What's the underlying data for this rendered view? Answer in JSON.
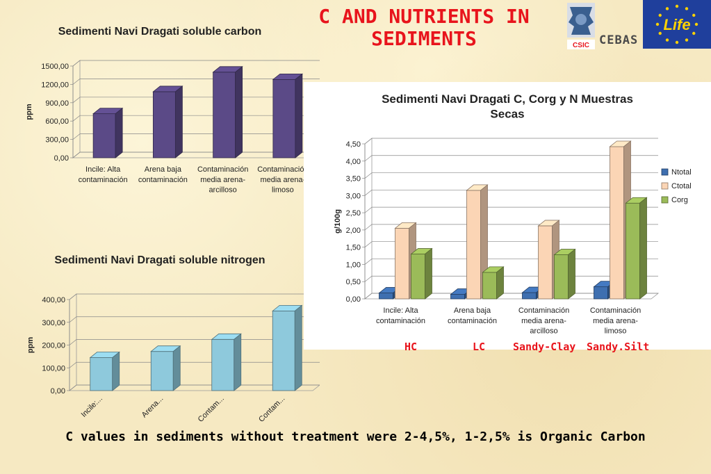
{
  "slide_title": "C AND NUTRIENTS IN SEDIMENTS",
  "logos": {
    "csic": "CSIC",
    "cebas": "CEBAS",
    "life": "Life"
  },
  "soil_labels": [
    "HC",
    "LC",
    "Sandy-Clay",
    "Sandy.Silt"
  ],
  "footer": "C values in sediments without treatment were 2-4,5%, 1-2,5% is Organic Carbon",
  "chart_data": [
    {
      "type": "bar",
      "title": "Sedimenti Navi Dragati soluble carbon",
      "ylabel": "ppm",
      "xlabel": "",
      "categories": [
        [
          "Incile: Alta",
          "contaminación"
        ],
        [
          "Arena baja",
          "contaminación"
        ],
        [
          "Contaminación",
          "media arena-",
          "arcilloso"
        ],
        [
          "Contaminación",
          "media arena-",
          "limoso"
        ]
      ],
      "values": [
        720,
        1080,
        1400,
        1280
      ],
      "ylim": [
        0,
        1500
      ],
      "yticks": [
        "0,00",
        "300,00",
        "600,00",
        "900,00",
        "1200,00",
        "1500,00"
      ],
      "color": "#5b4a87",
      "grid": true
    },
    {
      "type": "bar",
      "title": "Sedimenti Navi Dragati soluble nitrogen",
      "ylabel": "ppm",
      "xlabel": "",
      "categories": [
        [
          "Incile:..."
        ],
        [
          "Arena..."
        ],
        [
          "Contam..."
        ],
        [
          "Contam..."
        ]
      ],
      "values": [
        145,
        172,
        225,
        350
      ],
      "ylim": [
        0,
        400
      ],
      "yticks": [
        "0,00",
        "100,00",
        "200,00",
        "300,00",
        "400,00"
      ],
      "color": "#8ec9dc",
      "grid": true
    },
    {
      "type": "bar",
      "title": "Sedimenti Navi Dragati C, Corg y N Muestras Secas",
      "ylabel": "g/100g",
      "xlabel": "",
      "categories": [
        [
          "Incile: Alta",
          "contaminación"
        ],
        [
          "Arena baja",
          "contaminación"
        ],
        [
          "Contaminación",
          "media arena-",
          "arcilloso"
        ],
        [
          "Contaminación",
          "media arena-",
          "limoso"
        ]
      ],
      "series": [
        {
          "name": "Ntotal",
          "values": [
            0.17,
            0.13,
            0.18,
            0.35
          ],
          "color": "#3e6fb0"
        },
        {
          "name": "Ctotal",
          "values": [
            2.05,
            3.15,
            2.12,
            4.42
          ],
          "color": "#fbd5b5"
        },
        {
          "name": "Corg",
          "values": [
            1.3,
            0.77,
            1.28,
            2.78
          ],
          "color": "#9bbb59"
        }
      ],
      "ylim": [
        0,
        4.5
      ],
      "yticks": [
        "0,00",
        "0,50",
        "1,00",
        "1,50",
        "2,00",
        "2,50",
        "3,00",
        "3,50",
        "4,00",
        "4,50"
      ],
      "legend": "right",
      "grid": true
    }
  ]
}
